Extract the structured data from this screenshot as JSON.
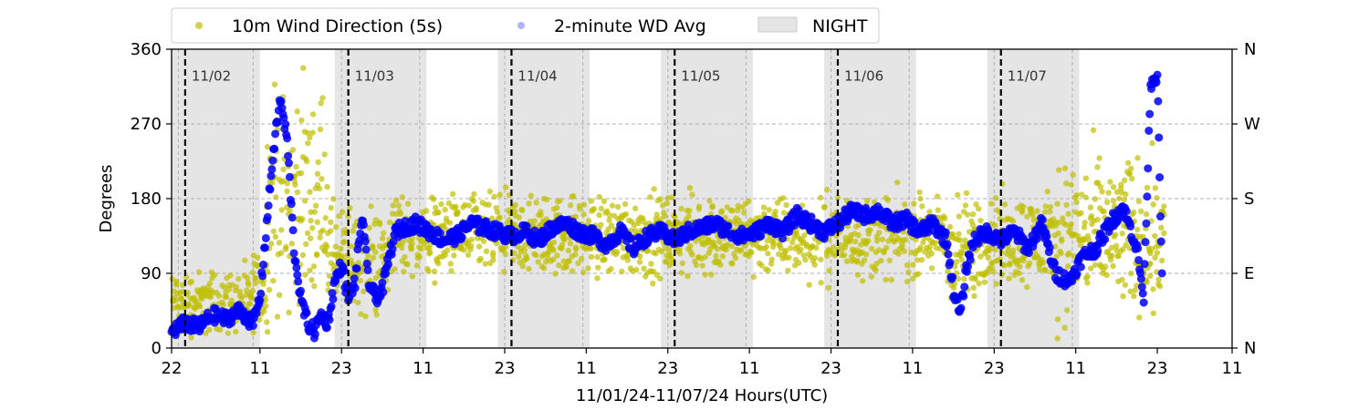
{
  "chart_data": {
    "type": "scatter",
    "title": "",
    "xlabel": "11/01/24-11/07/24  Hours(UTC)",
    "ylabel": "Degrees",
    "ylim": [
      0,
      360
    ],
    "yticks": [
      0,
      90,
      180,
      270,
      360
    ],
    "yticklabels_right": [
      "N",
      "E",
      "S",
      "W",
      "N"
    ],
    "xlim_hours": [
      -2,
      154
    ],
    "xticks_hours": [
      -2,
      11,
      23,
      35,
      47,
      59,
      71,
      83,
      95,
      107,
      119,
      131,
      143,
      155
    ],
    "xtick_labels": [
      "22",
      "11",
      "23",
      "11",
      "23",
      "11",
      "23",
      "11",
      "23",
      "11",
      "23",
      "11",
      "23",
      "11"
    ],
    "grid": "y-dashed",
    "legend_position": "top-center",
    "legend": [
      {
        "label": "10m Wind Direction (5s)",
        "color": "#bfbf00",
        "marker": "circle"
      },
      {
        "label": "2-minute WD Avg",
        "color": "#0000ff",
        "marker": "circle"
      },
      {
        "label": "NIGHT",
        "color": "#e5e5e5",
        "marker": "rect"
      }
    ],
    "night_periods_hours": [
      [
        -2,
        11
      ],
      [
        22,
        35.5
      ],
      [
        46,
        59.5
      ],
      [
        70,
        83.5
      ],
      [
        94,
        107.5
      ],
      [
        118,
        131.5
      ]
    ],
    "midnights_hours": [
      0,
      24,
      48,
      72,
      96,
      120
    ],
    "day_labels": [
      "11/02",
      "11/03",
      "11/04",
      "11/05",
      "11/06",
      "11/07"
    ],
    "series": [
      {
        "name": "2-minute WD Avg",
        "color": "#0000ff",
        "points": [
          [
            -2,
            20
          ],
          [
            0,
            30
          ],
          [
            2,
            25
          ],
          [
            4,
            40
          ],
          [
            6,
            35
          ],
          [
            8,
            45
          ],
          [
            10,
            30
          ],
          [
            11,
            60
          ],
          [
            12,
            150
          ],
          [
            13,
            240
          ],
          [
            14,
            300
          ],
          [
            15,
            250
          ],
          [
            16,
            120
          ],
          [
            17,
            60
          ],
          [
            18,
            30
          ],
          [
            19,
            20
          ],
          [
            20,
            40
          ],
          [
            21,
            30
          ],
          [
            22,
            80
          ],
          [
            23,
            100
          ],
          [
            24,
            60
          ],
          [
            25,
            80
          ],
          [
            26,
            160
          ],
          [
            27,
            80
          ],
          [
            28,
            60
          ],
          [
            29,
            70
          ],
          [
            30,
            110
          ],
          [
            31,
            140
          ],
          [
            32,
            145
          ],
          [
            34,
            150
          ],
          [
            36,
            140
          ],
          [
            38,
            130
          ],
          [
            40,
            135
          ],
          [
            42,
            150
          ],
          [
            44,
            145
          ],
          [
            46,
            140
          ],
          [
            48,
            135
          ],
          [
            50,
            140
          ],
          [
            52,
            130
          ],
          [
            54,
            145
          ],
          [
            56,
            150
          ],
          [
            58,
            140
          ],
          [
            60,
            135
          ],
          [
            62,
            125
          ],
          [
            64,
            140
          ],
          [
            66,
            120
          ],
          [
            68,
            135
          ],
          [
            70,
            140
          ],
          [
            72,
            130
          ],
          [
            74,
            140
          ],
          [
            76,
            145
          ],
          [
            78,
            150
          ],
          [
            80,
            140
          ],
          [
            82,
            135
          ],
          [
            84,
            140
          ],
          [
            86,
            150
          ],
          [
            88,
            140
          ],
          [
            90,
            160
          ],
          [
            92,
            150
          ],
          [
            94,
            140
          ],
          [
            96,
            150
          ],
          [
            98,
            165
          ],
          [
            100,
            160
          ],
          [
            102,
            165
          ],
          [
            104,
            150
          ],
          [
            106,
            155
          ],
          [
            108,
            140
          ],
          [
            110,
            150
          ],
          [
            112,
            130
          ],
          [
            113,
            70
          ],
          [
            114,
            40
          ],
          [
            115,
            100
          ],
          [
            116,
            130
          ],
          [
            118,
            140
          ],
          [
            120,
            130
          ],
          [
            122,
            140
          ],
          [
            124,
            120
          ],
          [
            126,
            150
          ],
          [
            128,
            90
          ],
          [
            130,
            80
          ],
          [
            132,
            110
          ],
          [
            134,
            120
          ],
          [
            136,
            150
          ],
          [
            138,
            170
          ],
          [
            140,
            120
          ],
          [
            141,
            60
          ],
          [
            142,
            320
          ],
          [
            143,
            330
          ],
          [
            143.8,
            40
          ]
        ]
      },
      {
        "name": "10m Wind Direction (5s)",
        "color": "#bfbf00",
        "bands": [
          {
            "from": -2,
            "to": 10,
            "min": 0,
            "max": 110
          },
          {
            "from": 10,
            "to": 12,
            "min": 0,
            "max": 140
          },
          {
            "from": 12,
            "to": 21,
            "min": 0,
            "max": 360
          },
          {
            "from": 21,
            "to": 30,
            "min": 10,
            "max": 200
          },
          {
            "from": 30,
            "to": 112,
            "min": 65,
            "max": 205
          },
          {
            "from": 112,
            "to": 116,
            "min": 20,
            "max": 210
          },
          {
            "from": 116,
            "to": 128,
            "min": 50,
            "max": 210
          },
          {
            "from": 128,
            "to": 144,
            "min": 0,
            "max": 270
          }
        ]
      }
    ]
  }
}
